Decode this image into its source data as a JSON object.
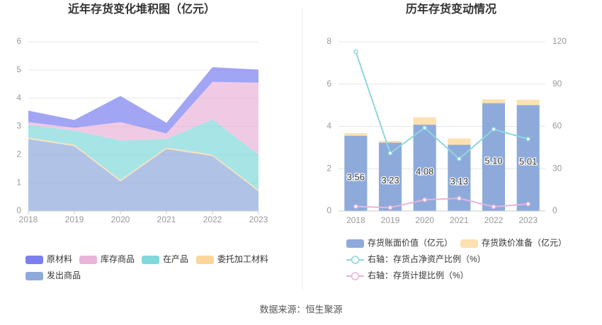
{
  "chart_data": [
    {
      "type": "area",
      "stacked": true,
      "title": "近年存货变化堆积图（亿元）",
      "categories": [
        "2018",
        "2019",
        "2020",
        "2021",
        "2022",
        "2023"
      ],
      "ylim": [
        0,
        6
      ],
      "yticks": [
        0,
        1,
        2,
        3,
        4,
        5,
        6
      ],
      "grid": true,
      "series": [
        {
          "name": "原材料",
          "color": "#7b7ff0",
          "values": [
            0.41,
            0.28,
            0.93,
            0.38,
            0.52,
            0.46
          ]
        },
        {
          "name": "库存商品",
          "color": "#e9b3da",
          "values": [
            0.1,
            0.1,
            0.65,
            0.2,
            1.33,
            2.55
          ]
        },
        {
          "name": "在产品",
          "color": "#80d8dc",
          "values": [
            0.45,
            0.5,
            1.4,
            0.3,
            1.25,
            1.25
          ]
        },
        {
          "name": "委托加工材料",
          "color": "#fcd699",
          "values": [
            0.05,
            0.05,
            0.05,
            0.05,
            0.05,
            0.05
          ]
        },
        {
          "name": "发出商品",
          "color": "#8eaadb",
          "values": [
            2.55,
            2.3,
            1.05,
            2.2,
            1.95,
            0.7
          ]
        }
      ]
    },
    {
      "type": "bar",
      "stacked": true,
      "title": "历年存货变动情况",
      "categories": [
        "2018",
        "2019",
        "2020",
        "2021",
        "2022",
        "2023"
      ],
      "ylim": [
        0,
        8
      ],
      "yticks": [
        0,
        2,
        4,
        6,
        8
      ],
      "y2lim": [
        0,
        120
      ],
      "y2ticks": [
        0,
        30,
        60,
        90,
        120
      ],
      "grid": true,
      "series": [
        {
          "name": "存货账面价值（亿元）",
          "type": "bar",
          "color": "#8eaadb",
          "values": [
            3.56,
            3.23,
            4.08,
            3.13,
            5.1,
            5.01
          ],
          "value_labels": [
            "3.56",
            "3.23",
            "4.08",
            "3.13",
            "5.10",
            "5.01"
          ]
        },
        {
          "name": "存货跌价准备（亿元）",
          "type": "bar",
          "color": "#fde1b0",
          "values": [
            0.12,
            0.08,
            0.35,
            0.3,
            0.18,
            0.25
          ]
        },
        {
          "name": "右轴：存货占净资产比例（%）",
          "type": "line",
          "axis": "y2",
          "color": "#8dd6de",
          "values": [
            113,
            41,
            59,
            37,
            58,
            51
          ]
        },
        {
          "name": "右轴：存货计提比例（%）",
          "type": "line",
          "axis": "y2",
          "color": "#e8b4d8",
          "values": [
            3.2,
            2.4,
            8,
            9,
            3,
            5
          ]
        }
      ]
    }
  ],
  "footer": "数据来源：恒生聚源"
}
